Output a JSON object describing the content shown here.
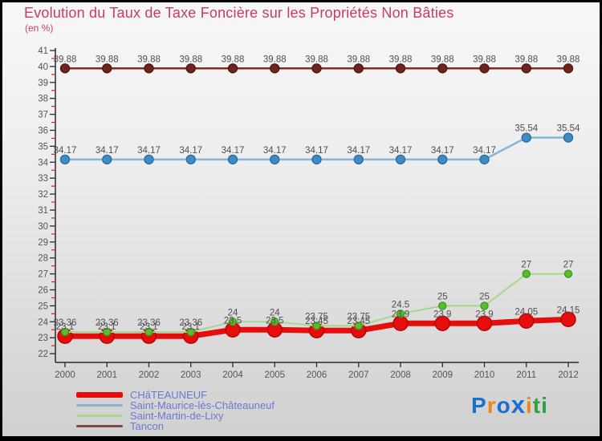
{
  "title": "Evolution du Taux de Taxe Foncière sur les Propriétés Non Bâties",
  "subtitle": "(en %)",
  "title_color": "#c93a66",
  "chart_data": {
    "type": "line",
    "title": "Evolution du Taux de Taxe Foncière sur les Propriétés Non Bâties",
    "subtitle": "(en %)",
    "x": [
      "2000",
      "2001",
      "2002",
      "2003",
      "2004",
      "2005",
      "2006",
      "2007",
      "2008",
      "2009",
      "2010",
      "2011",
      "2012"
    ],
    "ylim": [
      22,
      41
    ],
    "y_major_step": 1,
    "y_minor_step": 0.5,
    "grid": false,
    "legend_position": "bottom-left",
    "axis_color": "#2a2a2a",
    "minor_tick_color": "#cc2222",
    "point_label_color": "#4f4f4f",
    "series": [
      {
        "name": "CHâTEAUNEUF",
        "line_color": "#e60d0d",
        "line_width": 7,
        "dot_fill": "#e60d0d",
        "dot_stroke": "#b50505",
        "dot_radius": 9,
        "values": [
          23.1,
          23.1,
          23.1,
          23.1,
          23.5,
          23.5,
          23.45,
          23.45,
          23.9,
          23.9,
          23.9,
          24.05,
          24.15
        ]
      },
      {
        "name": "Saint-Maurice-lès-Châteauneuf",
        "line_color": "#85b6d6",
        "line_width": 2.5,
        "dot_fill": "#3e8cc7",
        "dot_stroke": "#2d6d9e",
        "dot_radius": 5.5,
        "values": [
          34.17,
          34.17,
          34.17,
          34.17,
          34.17,
          34.17,
          34.17,
          34.17,
          34.17,
          34.17,
          34.17,
          35.54,
          35.54
        ]
      },
      {
        "name": "Saint-Martin-de-Lixy",
        "line_color": "#a5d78c",
        "line_width": 2,
        "dot_fill": "#5abc2e",
        "dot_stroke": "#3f9a1f",
        "dot_radius": 4.5,
        "values": [
          23.36,
          23.36,
          23.36,
          23.36,
          24,
          24,
          23.75,
          23.75,
          24.5,
          25,
          25,
          27,
          27
        ]
      },
      {
        "name": "Tancon",
        "line_color": "#7b2d24",
        "line_width": 2.5,
        "dot_fill": "#6f241c",
        "dot_stroke": "#521710",
        "dot_radius": 5.5,
        "values": [
          39.88,
          39.88,
          39.88,
          39.88,
          39.88,
          39.88,
          39.88,
          39.88,
          39.88,
          39.88,
          39.88,
          39.88,
          39.88
        ]
      }
    ]
  },
  "legend": {
    "text_color": "#6b79d1",
    "items": [
      {
        "label": "CHâTEAUNEUF",
        "swatch_color": "#e60d0d",
        "swatch_height": 7
      },
      {
        "label": "Saint-Maurice-lès-Châteauneuf",
        "swatch_color": "#8ab4cc",
        "swatch_height": 3
      },
      {
        "label": "Saint-Martin-de-Lixy",
        "swatch_color": "#a8d88f",
        "swatch_height": 3
      },
      {
        "label": "Tancon",
        "swatch_color": "#7d4b44",
        "swatch_height": 3
      }
    ]
  },
  "logo": {
    "letters": [
      {
        "ch": "P",
        "color": "#1a6fd0",
        "big": false
      },
      {
        "ch": "r",
        "color": "#f0821c",
        "big": false
      },
      {
        "ch": "o",
        "color": "#1a6fd0",
        "big": false
      },
      {
        "ch": "x",
        "color": "#1a6fd0",
        "big": true
      },
      {
        "ch": "i",
        "color": "#f0821c",
        "big": false
      },
      {
        "ch": "t",
        "color": "#2fa043",
        "big": false
      },
      {
        "ch": "i",
        "color": "#2fa043",
        "big": false
      }
    ]
  }
}
